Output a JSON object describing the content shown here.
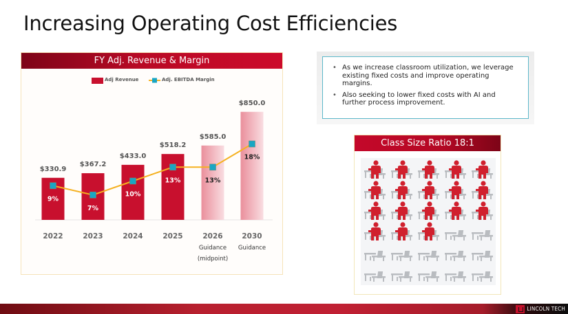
{
  "slide": {
    "title": "Increasing Operating Cost Efficiencies"
  },
  "chart_panel": {
    "header": "FY Adj. Revenue & Margin"
  },
  "chart_data": {
    "type": "bar",
    "title": "FY Adj. Revenue & Margin",
    "legend": [
      "Adj Revenue",
      "Adj. EBITDA Margin"
    ],
    "legend_position": "top-center",
    "categories": [
      "2022",
      "2023",
      "2024",
      "2025",
      "2026",
      "2030"
    ],
    "category_sublabels": [
      "",
      "",
      "",
      "",
      "Guidance\n(midpoint)",
      "Guidance"
    ],
    "series": [
      {
        "name": "Adj Revenue",
        "kind": "bar",
        "values": [
          330.9,
          367.2,
          433.0,
          518.2,
          585.0,
          850.0
        ],
        "labels": [
          "$330.9",
          "$367.2",
          "$433.0",
          "$518.2",
          "$585.0",
          "$850.0"
        ],
        "projected": [
          false,
          false,
          false,
          false,
          true,
          true
        ],
        "color": "#c8102e",
        "projected_color": "#ee9aa6"
      },
      {
        "name": "Adj. EBITDA Margin",
        "kind": "line",
        "values": [
          9,
          7,
          10,
          13,
          13,
          18
        ],
        "labels": [
          "9%",
          "7%",
          "10%",
          "13%",
          "13%",
          "18%"
        ],
        "line_color": "#f5b120",
        "marker_color": "#1aa6c3"
      }
    ],
    "ylim": [
      0,
      900
    ],
    "grid": false,
    "xlabel": "",
    "ylabel": ""
  },
  "bullets": [
    "As we increase classroom utilization, we leverage existing fixed costs and improve operating margins.",
    "Also seeking to lower fixed costs with AI and further process improvement."
  ],
  "bullet_glyph": "•",
  "class_size": {
    "header": "Class Size Ratio  18:1",
    "occupied_seats": 18,
    "total_seats": 30,
    "columns": 5,
    "occupied_color": "#d0202e",
    "empty_color": "#b9bcc0"
  },
  "footer": {
    "logo_text": "LINCOLN TECH"
  }
}
